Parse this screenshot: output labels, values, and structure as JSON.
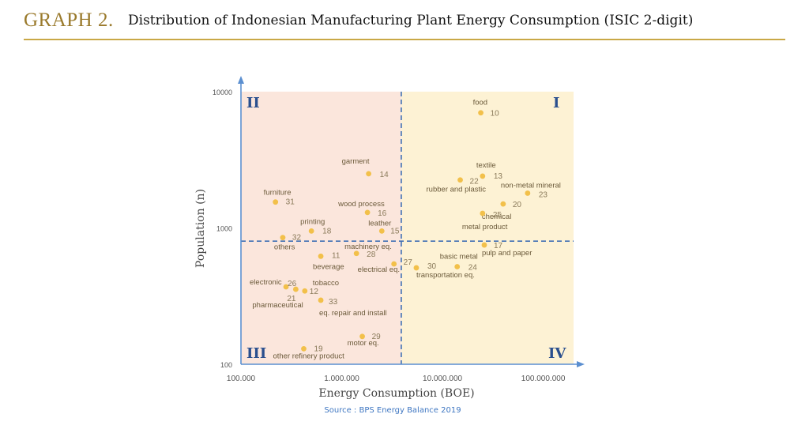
{
  "header": {
    "graph_label": "GRAPH 2.",
    "title": "Distribution of Indonesian Manufacturing Plant Energy Consumption (ISIC 2-digit)"
  },
  "chart_data": {
    "type": "scatter",
    "xlabel": "Energy Consumption (BOE)",
    "ylabel": "Population (n)",
    "x_scale": "log",
    "y_scale": "log",
    "xlim": [
      100000,
      200000000
    ],
    "ylim": [
      100,
      10000
    ],
    "x_ticks": [
      100000,
      1000000,
      10000000,
      100000000
    ],
    "x_tick_labels": [
      "100.000",
      "1.000.000",
      "10.000.000",
      "100.000.000"
    ],
    "y_ticks": [
      100,
      1000,
      10000
    ],
    "y_tick_labels": [
      "100",
      "1000",
      "10000"
    ],
    "divider_x": 3900000,
    "divider_y": 800,
    "quadrant_labels": {
      "top_left": "II",
      "top_right": "I",
      "bottom_left": "III",
      "bottom_right": "IV"
    },
    "quadrant_colors": {
      "left": "#fbe6dc",
      "right": "#fdf2d4"
    },
    "point_color": "#f2c04a",
    "label_color": "#6b5a3a",
    "divider_color": "#3f6fb4",
    "axis_color": "#5b8fd0",
    "points": [
      {
        "code": "10",
        "name": "food",
        "x": 24000000,
        "y": 7000
      },
      {
        "code": "14",
        "name": "garment",
        "x": 1850000,
        "y": 2500
      },
      {
        "code": "13",
        "name": "textile",
        "x": 25000000,
        "y": 2400
      },
      {
        "code": "22",
        "name": "rubber and plastic",
        "x": 15000000,
        "y": 2250
      },
      {
        "code": "23",
        "name": "non-metal mineral",
        "x": 70000000,
        "y": 1800
      },
      {
        "code": "31",
        "name": "furniture",
        "x": 220000,
        "y": 1550
      },
      {
        "code": "16",
        "name": "wood process",
        "x": 1800000,
        "y": 1300
      },
      {
        "code": "20",
        "name": "chemical",
        "x": 40000000,
        "y": 1500
      },
      {
        "code": "25",
        "name": "metal product",
        "x": 25000000,
        "y": 1280
      },
      {
        "code": "18",
        "name": "printing",
        "x": 500000,
        "y": 950
      },
      {
        "code": "15",
        "name": "leather",
        "x": 2500000,
        "y": 950
      },
      {
        "code": "32",
        "name": "others",
        "x": 260000,
        "y": 850
      },
      {
        "code": "17",
        "name": "pulp and paper",
        "x": 26000000,
        "y": 750
      },
      {
        "code": "11",
        "name": "beverage",
        "x": 620000,
        "y": 620
      },
      {
        "code": "28",
        "name": "machinery eq.",
        "x": 1400000,
        "y": 650
      },
      {
        "code": "27",
        "name": "electrical eq.",
        "x": 3300000,
        "y": 545
      },
      {
        "code": "30",
        "name": "transportation eq.",
        "x": 5500000,
        "y": 510
      },
      {
        "code": "24",
        "name": "basic metal",
        "x": 14000000,
        "y": 520
      },
      {
        "code": "26",
        "name": "electronic",
        "x": 280000,
        "y": 370
      },
      {
        "code": "12",
        "name": "tobacco",
        "x": 430000,
        "y": 345
      },
      {
        "code": "21",
        "name": "pharmaceutical",
        "x": 350000,
        "y": 355
      },
      {
        "code": "33",
        "name": "eq. repair and install",
        "x": 620000,
        "y": 295
      },
      {
        "code": "29",
        "name": "motor eq.",
        "x": 1600000,
        "y": 160
      },
      {
        "code": "19",
        "name": "other refinery product",
        "x": 420000,
        "y": 130
      }
    ],
    "source": "Source : BPS Energy Balance 2019"
  }
}
